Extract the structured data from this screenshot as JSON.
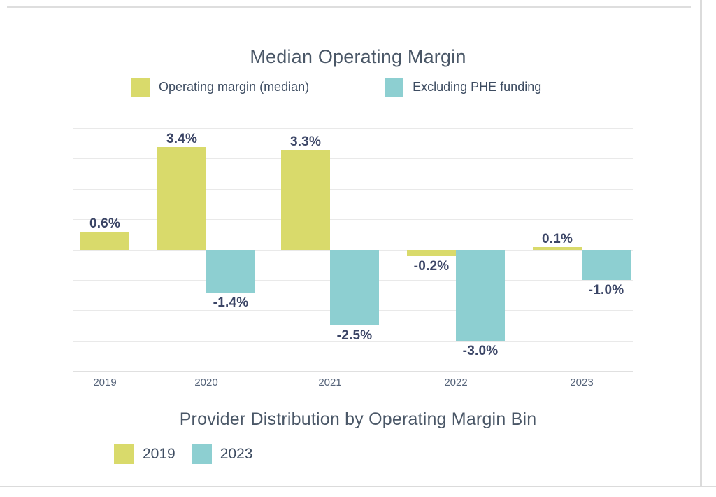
{
  "page": {
    "background": "#ffffff",
    "border_color": "#dbdbdb"
  },
  "colors": {
    "series_yellow": "#d9da6b",
    "series_teal": "#8dcfd1",
    "title_text": "#4a5767",
    "data_label_text": "#3b4566",
    "axis_label_text": "#556379",
    "gridline": "#e9e9e9"
  },
  "chart1": {
    "title": "Median Operating Margin",
    "legend": [
      {
        "label": "Operating margin (median)",
        "color": "#d9da6b"
      },
      {
        "label": "Excluding PHE funding",
        "color": "#8dcfd1"
      }
    ]
  },
  "chart2": {
    "title": "Provider Distribution by Operating Margin Bin",
    "legend": [
      {
        "label": "2019",
        "color": "#d9da6b"
      },
      {
        "label": "2023",
        "color": "#8dcfd1"
      }
    ]
  },
  "chart_data": [
    {
      "type": "bar",
      "title": "Median Operating Margin",
      "categories": [
        "2019",
        "2020",
        "2021",
        "2022",
        "2023"
      ],
      "series": [
        {
          "name": "Operating margin (median)",
          "color": "#d9da6b",
          "values": [
            0.6,
            3.4,
            3.3,
            -0.2,
            0.1
          ],
          "labels": [
            "0.6%",
            "3.4%",
            "3.3%",
            "-0.2%",
            "0.1%"
          ]
        },
        {
          "name": "Excluding PHE funding",
          "color": "#8dcfd1",
          "values": [
            null,
            -1.4,
            -2.5,
            -3.0,
            -1.0
          ],
          "labels": [
            null,
            "-1.4%",
            "-2.5%",
            "-3.0%",
            "-1.0%"
          ]
        }
      ],
      "ylabel": "",
      "xlabel": "",
      "ylim": [
        -4,
        4
      ],
      "grid": true,
      "grid_interval": 1,
      "legend_position": "top",
      "value_format": "percent"
    },
    {
      "type": "bar",
      "title": "Provider Distribution by Operating Margin Bin",
      "categories": [],
      "series": [
        {
          "name": "2019",
          "color": "#d9da6b"
        },
        {
          "name": "2023",
          "color": "#8dcfd1"
        }
      ],
      "legend_position": "top"
    }
  ]
}
